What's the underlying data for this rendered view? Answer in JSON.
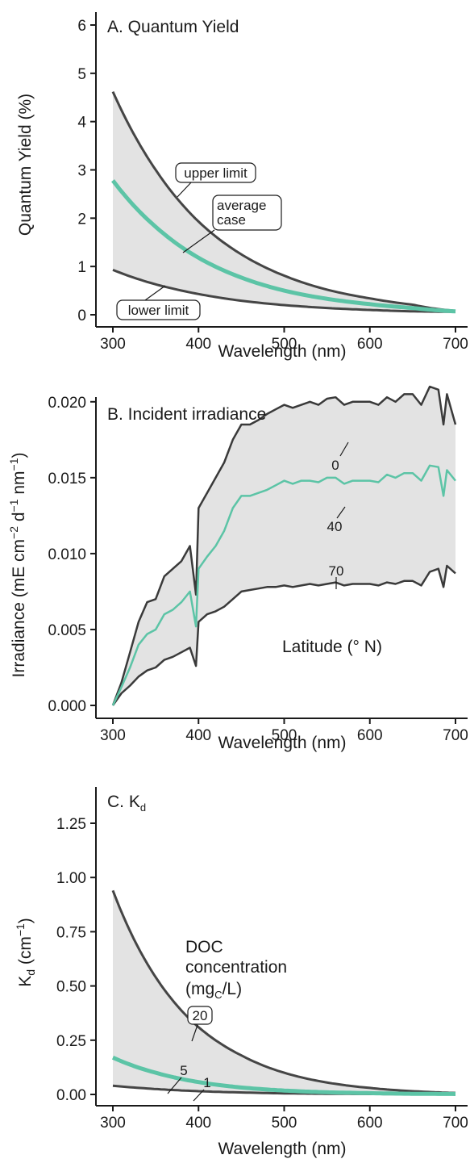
{
  "chart_data": [
    {
      "type": "area",
      "title": "A. Quantum Yield",
      "xlabel": "Wavelength (nm)",
      "ylabel": "Quantum Yield (%)",
      "xlim": [
        300,
        700
      ],
      "ylim": [
        0,
        6
      ],
      "xticks": [
        "300",
        "400",
        "500",
        "600",
        "700"
      ],
      "yticks": [
        "0",
        "1",
        "2",
        "3",
        "4",
        "5",
        "6"
      ],
      "x": [
        300,
        350,
        400,
        450,
        500,
        550,
        600,
        650,
        700
      ],
      "series": [
        {
          "name": "upper limit",
          "values": [
            4.62,
            3.0,
            1.93,
            1.25,
            0.81,
            0.52,
            0.34,
            0.21,
            0.08
          ]
        },
        {
          "name": "average case",
          "values": [
            2.78,
            1.82,
            1.18,
            0.77,
            0.5,
            0.33,
            0.22,
            0.14,
            0.07
          ]
        },
        {
          "name": "lower limit",
          "values": [
            0.93,
            0.63,
            0.43,
            0.29,
            0.2,
            0.14,
            0.1,
            0.07,
            0.06
          ]
        }
      ],
      "annotations": {
        "upper": "upper limit",
        "average_line1": "average",
        "average_line2": "case",
        "lower": "lower limit"
      }
    },
    {
      "type": "area",
      "title": "B. Incident irradiance",
      "xlabel": "Wavelength (nm)",
      "ylabel_main": "Irradiance (mE cm",
      "ylabel_exp1": "−2",
      "ylabel_mid": " d",
      "ylabel_exp2": "−1",
      "ylabel_mid2": " nm",
      "ylabel_exp3": "−1",
      "ylabel_end": ")",
      "xlim": [
        300,
        700
      ],
      "ylim": [
        0,
        0.021
      ],
      "xticks": [
        "300",
        "400",
        "500",
        "600",
        "700"
      ],
      "yticks": [
        "0.000",
        "0.005",
        "0.010",
        "0.015",
        "0.020"
      ],
      "x": [
        300,
        310,
        320,
        330,
        340,
        350,
        360,
        370,
        380,
        390,
        397,
        400,
        410,
        420,
        430,
        440,
        450,
        460,
        470,
        480,
        490,
        500,
        510,
        520,
        530,
        540,
        550,
        560,
        570,
        580,
        590,
        600,
        610,
        620,
        630,
        640,
        650,
        660,
        670,
        680,
        686,
        690,
        700
      ],
      "series": [
        {
          "name": "0",
          "values": [
            0.0,
            0.0015,
            0.0035,
            0.0055,
            0.0068,
            0.007,
            0.0085,
            0.009,
            0.0095,
            0.0105,
            0.0073,
            0.013,
            0.014,
            0.015,
            0.016,
            0.0175,
            0.0185,
            0.0185,
            0.0188,
            0.0192,
            0.0195,
            0.0198,
            0.0196,
            0.0198,
            0.02,
            0.0198,
            0.0202,
            0.0203,
            0.0198,
            0.02,
            0.02,
            0.02,
            0.0198,
            0.0203,
            0.02,
            0.0205,
            0.0205,
            0.0198,
            0.021,
            0.0208,
            0.0185,
            0.0205,
            0.0185
          ]
        },
        {
          "name": "40",
          "values": [
            0.0,
            0.0012,
            0.0025,
            0.004,
            0.0047,
            0.005,
            0.006,
            0.0063,
            0.0068,
            0.0075,
            0.0052,
            0.009,
            0.0098,
            0.0105,
            0.0115,
            0.013,
            0.0138,
            0.0138,
            0.014,
            0.0142,
            0.0145,
            0.0148,
            0.0146,
            0.0148,
            0.0148,
            0.0147,
            0.015,
            0.015,
            0.0146,
            0.0148,
            0.0148,
            0.0148,
            0.0147,
            0.0152,
            0.015,
            0.0153,
            0.0153,
            0.0148,
            0.0158,
            0.0157,
            0.0138,
            0.0155,
            0.0148
          ]
        },
        {
          "name": "70",
          "values": [
            0.0,
            0.0008,
            0.0013,
            0.0019,
            0.0023,
            0.0025,
            0.003,
            0.0032,
            0.0035,
            0.0038,
            0.0026,
            0.0055,
            0.006,
            0.0062,
            0.0065,
            0.007,
            0.0075,
            0.0076,
            0.0077,
            0.0078,
            0.0078,
            0.0079,
            0.0078,
            0.0079,
            0.008,
            0.0079,
            0.008,
            0.0081,
            0.0079,
            0.008,
            0.008,
            0.008,
            0.0079,
            0.0081,
            0.008,
            0.0082,
            0.0082,
            0.0079,
            0.0088,
            0.009,
            0.0078,
            0.0092,
            0.0087
          ]
        }
      ],
      "annotations": {
        "lat0": "0",
        "lat40": "40",
        "lat70": "70",
        "legend_title": "Latitude (° N)"
      }
    },
    {
      "type": "area",
      "title_main": "C. K",
      "title_sub": "d",
      "xlabel": "Wavelength (nm)",
      "ylabel_main": "K",
      "ylabel_sub": "d",
      "ylabel_rest": " (cm",
      "ylabel_exp": "−1",
      "ylabel_end": ")",
      "xlim": [
        300,
        700
      ],
      "ylim": [
        0,
        1.25
      ],
      "xticks": [
        "300",
        "400",
        "500",
        "600",
        "700"
      ],
      "yticks": [
        "0.00",
        "0.25",
        "0.50",
        "0.75",
        "1.00",
        "1.25"
      ],
      "x": [
        300,
        350,
        400,
        450,
        500,
        550,
        600,
        650,
        700
      ],
      "series": [
        {
          "name": "20",
          "values": [
            0.94,
            0.54,
            0.31,
            0.18,
            0.1,
            0.055,
            0.03,
            0.015,
            0.007
          ]
        },
        {
          "name": "5",
          "values": [
            0.17,
            0.1,
            0.057,
            0.032,
            0.018,
            0.01,
            0.006,
            0.003,
            0.002
          ]
        },
        {
          "name": "1",
          "values": [
            0.04,
            0.025,
            0.015,
            0.009,
            0.005,
            0.003,
            0.002,
            0.001,
            0.001
          ]
        }
      ],
      "annotations": {
        "doc1": "DOC",
        "doc2": "concentration",
        "doc3_pre": "(mg",
        "doc3_sub": "C",
        "doc3_post": "/L)",
        "c20": "20",
        "c5": "5",
        "c1": "1"
      }
    }
  ]
}
